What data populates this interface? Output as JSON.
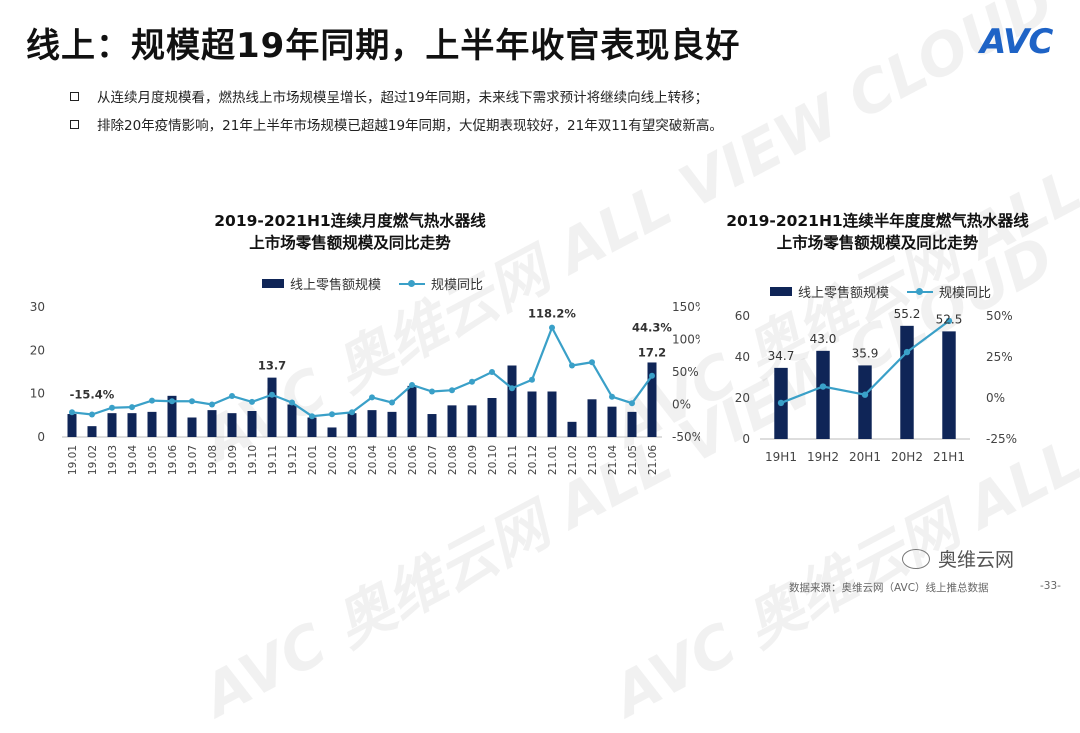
{
  "title": "线上：规模超19年同期，上半年收官表现良好",
  "logo": "AVC",
  "watermark": "AVC 奥维云网 ALL VIEW CLOUD",
  "bullets": [
    "从连续月度规模看，燃热线上市场规模呈增长，超过19年同期，未来线下需求预计将继续向线上转移；",
    "排除20年疫情影响，21年上半年市场规模已超越19年同期，大促期表现较好，21年双11有望突破新高。"
  ],
  "colors": {
    "bar": "#0f2557",
    "line": "#3aa0c8"
  },
  "chart_data": [
    {
      "type": "bar+line",
      "title_line1": "2019-2021H1连续月度燃气热水器线",
      "title_line2": "上市场零售额规模及同比走势",
      "legend": [
        "线上零售额规模",
        "规模同比"
      ],
      "categories": [
        "19.01",
        "19.02",
        "19.03",
        "19.04",
        "19.05",
        "19.06",
        "19.07",
        "19.08",
        "19.09",
        "19.10",
        "19.11",
        "19.12",
        "20.01",
        "20.02",
        "20.03",
        "20.04",
        "20.05",
        "20.06",
        "20.07",
        "20.08",
        "20.09",
        "20.10",
        "20.11",
        "20.12",
        "21.01",
        "21.02",
        "21.03",
        "21.04",
        "21.05",
        "21.06"
      ],
      "bar_values": [
        5.3,
        2.5,
        5.5,
        5.5,
        5.8,
        9.5,
        4.5,
        6.2,
        5.5,
        6.0,
        13.7,
        7.5,
        4.5,
        2.2,
        5.5,
        6.2,
        5.8,
        11.8,
        5.3,
        7.3,
        7.3,
        9.0,
        16.5,
        10.5,
        10.5,
        3.5,
        8.7,
        7.0,
        5.8,
        17.2
      ],
      "line_values": [
        -12,
        -15.4,
        -5,
        -4,
        6,
        5,
        5,
        0,
        13,
        4,
        15,
        3,
        -18,
        -15,
        -12,
        11,
        3,
        30,
        20,
        22,
        35,
        50,
        25,
        38,
        118.2,
        60,
        65,
        12,
        2,
        44.3
      ],
      "bar_labels": [
        {
          "index": 10,
          "text": "13.7"
        },
        {
          "index": 29,
          "text": "17.2"
        }
      ],
      "line_labels": [
        {
          "index": 1,
          "text": "-15.4%"
        },
        {
          "index": 24,
          "text": "118.2%"
        },
        {
          "index": 29,
          "text": "44.3%"
        }
      ],
      "y_left": {
        "min": 0,
        "max": 30,
        "ticks": [
          "0",
          "10",
          "20",
          "30"
        ]
      },
      "y_right": {
        "min": -50,
        "max": 150,
        "ticks": [
          "-50%",
          "0%",
          "50%",
          "100%",
          "150%"
        ]
      }
    },
    {
      "type": "bar+line",
      "title_line1": "2019-2021H1连续半年度度燃气热水器线",
      "title_line2": "上市场零售额规模及同比走势",
      "legend": [
        "线上零售额规模",
        "规模同比"
      ],
      "categories": [
        "19H1",
        "19H2",
        "20H1",
        "20H2",
        "21H1"
      ],
      "bar_values": [
        34.7,
        43.0,
        35.9,
        55.2,
        52.5
      ],
      "bar_labels_text": [
        "34.7",
        "43.0",
        "35.9",
        "55.2",
        "52.5"
      ],
      "line_values": [
        -3,
        7,
        2,
        28,
        47
      ],
      "y_left": {
        "min": 0,
        "max": 60,
        "ticks": [
          "0",
          "20",
          "40",
          "60"
        ]
      },
      "y_right": {
        "min": -25,
        "max": 50,
        "ticks": [
          "-25%",
          "0%",
          "25%",
          "50%"
        ]
      }
    }
  ],
  "wechat": "奥维云网",
  "source": "数据来源：奥维云网（AVC）线上推总数据",
  "page_no": "-33-"
}
